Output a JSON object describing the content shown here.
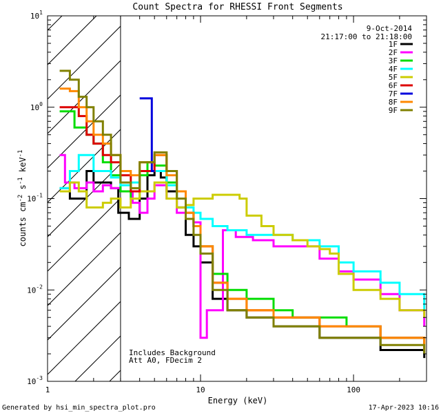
{
  "chart_data": {
    "type": "line",
    "title": "Count Spectra for RHESSI Front Segments",
    "xlabel": "Energy (keV)",
    "ylabel_parts": [
      "counts cm",
      "-2",
      " s",
      "-1",
      " keV",
      "-1"
    ],
    "x_scale": "log",
    "y_scale": "log",
    "xlim": [
      1,
      300
    ],
    "ylim": [
      0.001,
      10
    ],
    "x_tick_labels": [
      {
        "value": 1,
        "label": "1"
      },
      {
        "value": 10,
        "label": "10"
      },
      {
        "value": 100,
        "label": "100"
      }
    ],
    "y_tick_labels": [
      {
        "value": 0.001,
        "base": "10",
        "exp": "-3"
      },
      {
        "value": 0.01,
        "base": "10",
        "exp": "-2"
      },
      {
        "value": 0.1,
        "base": "10",
        "exp": "-1"
      },
      {
        "value": 1,
        "base": "10",
        "exp": "0"
      },
      {
        "value": 10,
        "base": "10",
        "exp": "1"
      }
    ],
    "hatched_region_keV": [
      1,
      3
    ],
    "date": "9-Oct-2014",
    "time_range": "21:17:00 to 21:18:00",
    "annotations": [
      "Includes Background",
      "Att A0, FDecim 2"
    ],
    "series": [
      {
        "name": "1F",
        "color": "#000000",
        "points": [
          [
            1.2,
            0.13
          ],
          [
            1.3,
            0.13
          ],
          [
            1.4,
            0.1
          ],
          [
            1.6,
            0.1
          ],
          [
            1.8,
            0.2
          ],
          [
            2.0,
            0.15
          ],
          [
            2.3,
            0.15
          ],
          [
            2.6,
            0.13
          ],
          [
            2.9,
            0.07
          ],
          [
            3.4,
            0.06
          ],
          [
            4.0,
            0.1
          ],
          [
            4.5,
            0.18
          ],
          [
            5,
            0.2
          ],
          [
            5.5,
            0.17
          ],
          [
            6,
            0.12
          ],
          [
            7,
            0.08
          ],
          [
            8,
            0.04
          ],
          [
            9,
            0.03
          ],
          [
            10,
            0.02
          ],
          [
            12,
            0.008
          ],
          [
            15,
            0.006
          ],
          [
            20,
            0.005
          ],
          [
            30,
            0.004
          ],
          [
            40,
            0.004
          ],
          [
            60,
            0.003
          ],
          [
            90,
            0.003
          ],
          [
            150,
            0.0022
          ],
          [
            290,
            0.0018
          ]
        ]
      },
      {
        "name": "2F",
        "color": "#ff00ff",
        "points": [
          [
            1.2,
            0.3
          ],
          [
            1.3,
            0.15
          ],
          [
            1.5,
            0.13
          ],
          [
            1.8,
            0.15
          ],
          [
            2.0,
            0.12
          ],
          [
            2.3,
            0.14
          ],
          [
            2.6,
            0.13
          ],
          [
            3.0,
            0.12
          ],
          [
            3.6,
            0.09
          ],
          [
            4,
            0.07
          ],
          [
            4.5,
            0.1
          ],
          [
            5,
            0.14
          ],
          [
            6,
            0.1
          ],
          [
            7,
            0.07
          ],
          [
            8,
            0.06
          ],
          [
            9,
            0.055
          ],
          [
            10,
            0.003
          ],
          [
            11,
            0.006
          ],
          [
            14,
            0.045
          ],
          [
            17,
            0.038
          ],
          [
            22,
            0.035
          ],
          [
            30,
            0.03
          ],
          [
            40,
            0.03
          ],
          [
            60,
            0.022
          ],
          [
            80,
            0.016
          ],
          [
            100,
            0.013
          ],
          [
            150,
            0.009
          ],
          [
            200,
            0.006
          ],
          [
            290,
            0.004
          ]
        ]
      },
      {
        "name": "3F",
        "color": "#00dd00",
        "points": [
          [
            1.2,
            0.9
          ],
          [
            1.3,
            0.9
          ],
          [
            1.5,
            0.6
          ],
          [
            1.8,
            0.5
          ],
          [
            2.0,
            0.4
          ],
          [
            2.3,
            0.25
          ],
          [
            2.6,
            0.18
          ],
          [
            3.0,
            0.12
          ],
          [
            3.5,
            0.1
          ],
          [
            4,
            0.18
          ],
          [
            4.5,
            0.25
          ],
          [
            5,
            0.23
          ],
          [
            6,
            0.15
          ],
          [
            7,
            0.1
          ],
          [
            8,
            0.07
          ],
          [
            9,
            0.05
          ],
          [
            10,
            0.03
          ],
          [
            12,
            0.015
          ],
          [
            15,
            0.01
          ],
          [
            20,
            0.008
          ],
          [
            30,
            0.006
          ],
          [
            40,
            0.005
          ],
          [
            60,
            0.005
          ],
          [
            90,
            0.004
          ],
          [
            150,
            0.003
          ],
          [
            290,
            0.0022
          ]
        ]
      },
      {
        "name": "4F",
        "color": "#00ffff",
        "points": [
          [
            1.2,
            0.13
          ],
          [
            1.4,
            0.2
          ],
          [
            1.6,
            0.3
          ],
          [
            1.8,
            0.3
          ],
          [
            2.0,
            0.2
          ],
          [
            2.3,
            0.2
          ],
          [
            2.6,
            0.17
          ],
          [
            3.0,
            0.14
          ],
          [
            3.5,
            0.15
          ],
          [
            4,
            0.2
          ],
          [
            5,
            0.2
          ],
          [
            6,
            0.14
          ],
          [
            7,
            0.1
          ],
          [
            8,
            0.08
          ],
          [
            9,
            0.07
          ],
          [
            10,
            0.06
          ],
          [
            12,
            0.05
          ],
          [
            15,
            0.045
          ],
          [
            20,
            0.04
          ],
          [
            30,
            0.04
          ],
          [
            40,
            0.035
          ],
          [
            60,
            0.03
          ],
          [
            80,
            0.02
          ],
          [
            100,
            0.016
          ],
          [
            150,
            0.012
          ],
          [
            200,
            0.009
          ],
          [
            290,
            0.006
          ]
        ]
      },
      {
        "name": "5F",
        "color": "#cccc00",
        "points": [
          [
            1.2,
            0.12
          ],
          [
            1.4,
            0.15
          ],
          [
            1.6,
            0.12
          ],
          [
            1.8,
            0.08
          ],
          [
            2.0,
            0.08
          ],
          [
            2.3,
            0.09
          ],
          [
            2.6,
            0.1
          ],
          [
            3.0,
            0.08
          ],
          [
            3.5,
            0.1
          ],
          [
            4,
            0.12
          ],
          [
            5,
            0.15
          ],
          [
            6,
            0.1
          ],
          [
            7,
            0.08
          ],
          [
            8,
            0.085
          ],
          [
            9,
            0.1
          ],
          [
            10,
            0.1
          ],
          [
            12,
            0.11
          ],
          [
            15,
            0.11
          ],
          [
            18,
            0.1
          ],
          [
            20,
            0.065
          ],
          [
            25,
            0.05
          ],
          [
            30,
            0.04
          ],
          [
            40,
            0.035
          ],
          [
            50,
            0.03
          ],
          [
            60,
            0.028
          ],
          [
            70,
            0.025
          ],
          [
            80,
            0.015
          ],
          [
            100,
            0.01
          ],
          [
            150,
            0.008
          ],
          [
            200,
            0.006
          ],
          [
            290,
            0.005
          ]
        ]
      },
      {
        "name": "6F",
        "color": "#dd0000",
        "points": [
          [
            1.2,
            1.0
          ],
          [
            1.4,
            1.0
          ],
          [
            1.6,
            0.8
          ],
          [
            1.8,
            0.5
          ],
          [
            2.0,
            0.4
          ],
          [
            2.3,
            0.3
          ],
          [
            2.6,
            0.25
          ],
          [
            3.0,
            0.18
          ],
          [
            3.5,
            0.12
          ],
          [
            4,
            0.2
          ],
          [
            5,
            0.3
          ],
          [
            6,
            0.2
          ],
          [
            7,
            0.12
          ],
          [
            8,
            0.07
          ],
          [
            9,
            0.05
          ],
          [
            10,
            0.03
          ],
          [
            12,
            0.012
          ],
          [
            15,
            0.008
          ],
          [
            20,
            0.006
          ],
          [
            30,
            0.005
          ],
          [
            40,
            0.005
          ],
          [
            60,
            0.004
          ],
          [
            90,
            0.004
          ],
          [
            150,
            0.003
          ],
          [
            290,
            0.0022
          ]
        ]
      },
      {
        "name": "7F",
        "color": "#0000dd",
        "points": [
          [
            4.0,
            1.25
          ],
          [
            4.5,
            1.25
          ],
          [
            4.8,
            0.2
          ],
          [
            5,
            0.2
          ]
        ]
      },
      {
        "name": "8F",
        "color": "#ff8800",
        "points": [
          [
            1.2,
            1.6
          ],
          [
            1.4,
            1.5
          ],
          [
            1.6,
            1.0
          ],
          [
            1.8,
            0.7
          ],
          [
            2.0,
            0.5
          ],
          [
            2.3,
            0.4
          ],
          [
            2.6,
            0.3
          ],
          [
            3.0,
            0.2
          ],
          [
            3.5,
            0.18
          ],
          [
            4,
            0.25
          ],
          [
            5,
            0.3
          ],
          [
            6,
            0.18
          ],
          [
            7,
            0.12
          ],
          [
            8,
            0.07
          ],
          [
            9,
            0.05
          ],
          [
            10,
            0.03
          ],
          [
            12,
            0.012
          ],
          [
            15,
            0.008
          ],
          [
            20,
            0.006
          ],
          [
            30,
            0.005
          ],
          [
            40,
            0.005
          ],
          [
            60,
            0.004
          ],
          [
            90,
            0.004
          ],
          [
            150,
            0.003
          ],
          [
            290,
            0.0022
          ]
        ]
      },
      {
        "name": "9F",
        "color": "#808000",
        "points": [
          [
            1.2,
            2.5
          ],
          [
            1.4,
            2.0
          ],
          [
            1.6,
            1.3
          ],
          [
            1.8,
            1.0
          ],
          [
            2.0,
            0.7
          ],
          [
            2.3,
            0.5
          ],
          [
            2.6,
            0.3
          ],
          [
            3.0,
            0.15
          ],
          [
            3.5,
            0.13
          ],
          [
            4,
            0.25
          ],
          [
            5,
            0.32
          ],
          [
            6,
            0.2
          ],
          [
            7,
            0.1
          ],
          [
            8,
            0.06
          ],
          [
            9,
            0.04
          ],
          [
            10,
            0.025
          ],
          [
            12,
            0.01
          ],
          [
            15,
            0.006
          ],
          [
            20,
            0.005
          ],
          [
            30,
            0.004
          ],
          [
            40,
            0.004
          ],
          [
            60,
            0.003
          ],
          [
            90,
            0.003
          ],
          [
            150,
            0.0025
          ],
          [
            290,
            0.002
          ]
        ]
      }
    ]
  },
  "footer": {
    "generated_by": "Generated by hsi_min_spectra_plot.pro",
    "timestamp": "17-Apr-2023 10:16"
  }
}
